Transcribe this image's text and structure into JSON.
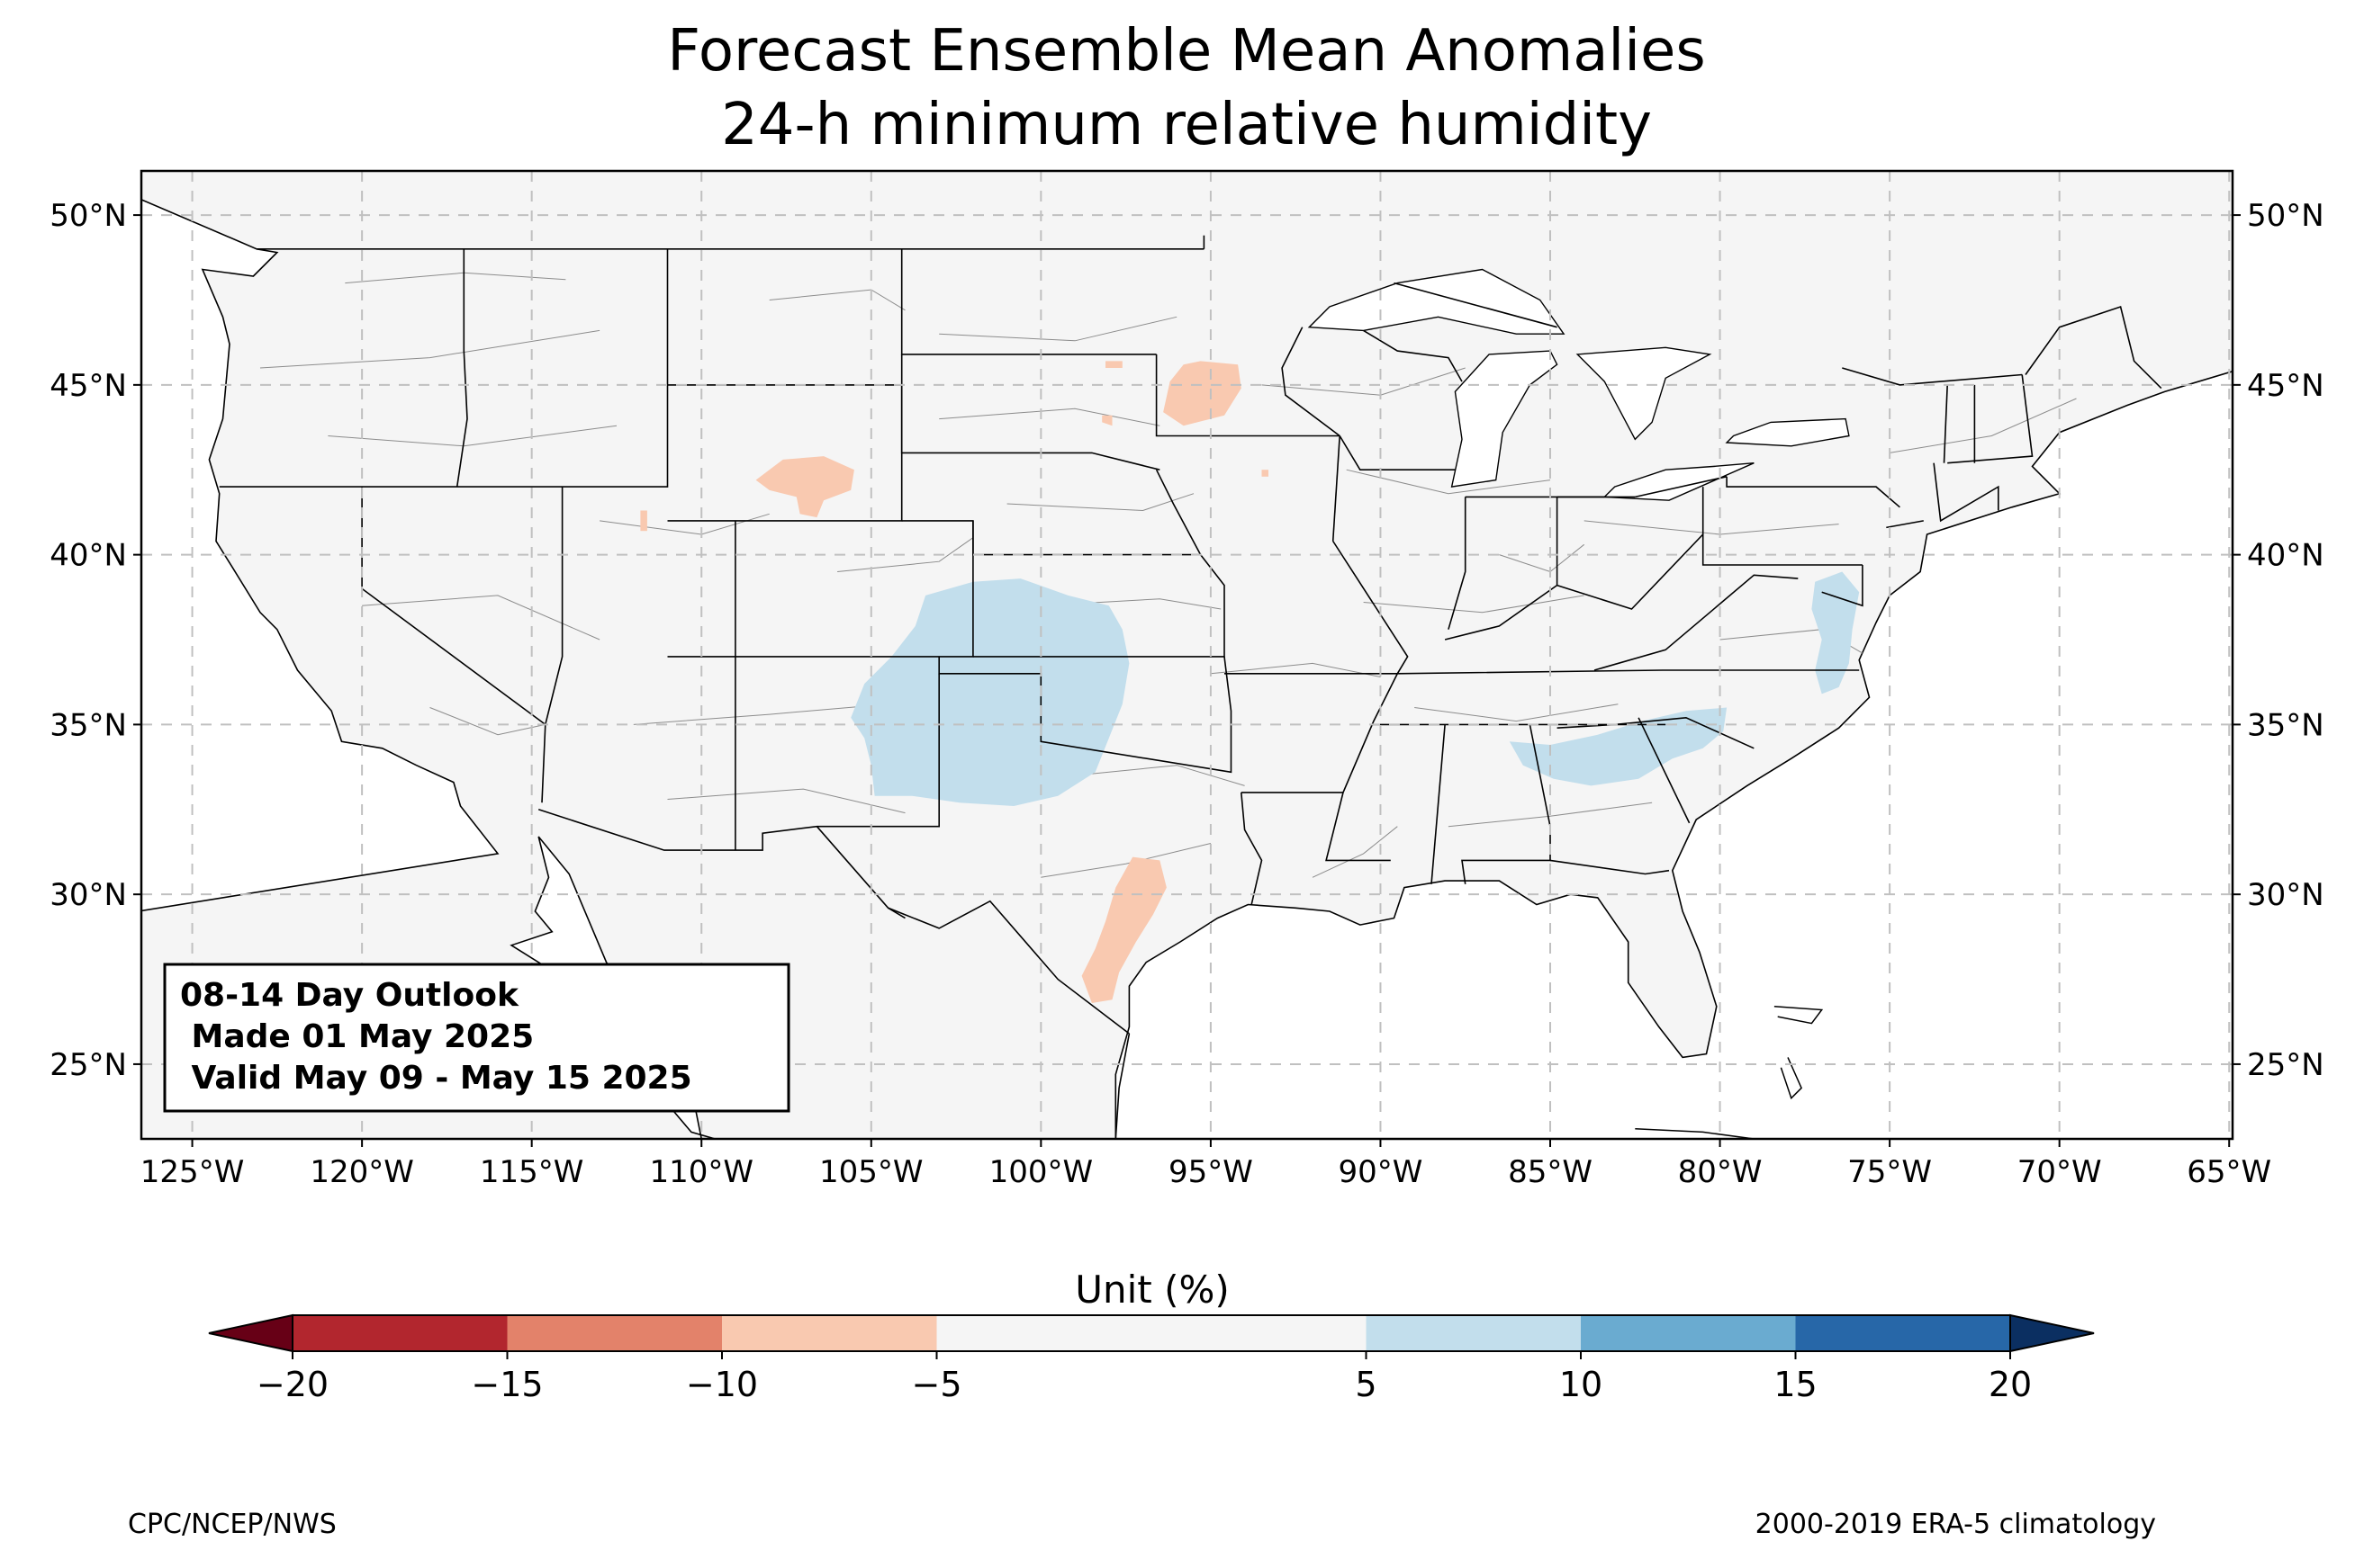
{
  "title": {
    "line1": "Forecast Ensemble Mean Anomalies",
    "line2": "24-h minimum relative humidity"
  },
  "map": {
    "extent": {
      "lon_min": -126.5,
      "lon_max": -64.9,
      "lat_min": 22.8,
      "lat_max": 51.3
    },
    "lon_ticks": [
      {
        "value": -125,
        "label": "125°W"
      },
      {
        "value": -120,
        "label": "120°W"
      },
      {
        "value": -115,
        "label": "115°W"
      },
      {
        "value": -110,
        "label": "110°W"
      },
      {
        "value": -105,
        "label": "105°W"
      },
      {
        "value": -100,
        "label": "100°W"
      },
      {
        "value": -95,
        "label": "95°W"
      },
      {
        "value": -90,
        "label": "90°W"
      },
      {
        "value": -85,
        "label": "85°W"
      },
      {
        "value": -80,
        "label": "80°W"
      },
      {
        "value": -75,
        "label": "75°W"
      },
      {
        "value": -70,
        "label": "70°W"
      },
      {
        "value": -65,
        "label": "65°W"
      }
    ],
    "lat_ticks": [
      {
        "value": 25,
        "label": "25°N"
      },
      {
        "value": 30,
        "label": "30°N"
      },
      {
        "value": 35,
        "label": "35°N"
      },
      {
        "value": 40,
        "label": "40°N"
      },
      {
        "value": 45,
        "label": "45°N"
      },
      {
        "value": 50,
        "label": "50°N"
      }
    ],
    "grid": true,
    "land_color": "#f5f5f5",
    "boundary_color": "#000000",
    "county_color": "#8c8c8c",
    "anomaly_regions": [
      {
        "name": "southern plains moist anomaly",
        "bin": "5 to 10",
        "color": "#c2deec",
        "polygon": [
          [
            -103.4,
            38.8
          ],
          [
            -102,
            39.2
          ],
          [
            -100.6,
            39.3
          ],
          [
            -99.2,
            38.8
          ],
          [
            -98,
            38.5
          ],
          [
            -97.6,
            37.8
          ],
          [
            -97.4,
            36.8
          ],
          [
            -97.6,
            35.6
          ],
          [
            -98,
            34.6
          ],
          [
            -98.4,
            33.6
          ],
          [
            -99.5,
            32.9
          ],
          [
            -100.8,
            32.6
          ],
          [
            -102.4,
            32.7
          ],
          [
            -103.8,
            32.9
          ],
          [
            -104.9,
            32.9
          ],
          [
            -105,
            33.8
          ],
          [
            -105.2,
            34.6
          ],
          [
            -105.6,
            35.2
          ],
          [
            -105.2,
            36.2
          ],
          [
            -104.4,
            37
          ],
          [
            -103.7,
            37.9
          ]
        ]
      },
      {
        "name": "southeast moist anomaly",
        "bin": "5 to 10",
        "color": "#c2deec",
        "polygon": [
          [
            -86.2,
            34.5
          ],
          [
            -85,
            34.4
          ],
          [
            -83.6,
            34.7
          ],
          [
            -82.3,
            35.1
          ],
          [
            -81,
            35.4
          ],
          [
            -79.8,
            35.5
          ],
          [
            -79.9,
            34.8
          ],
          [
            -80.5,
            34.3
          ],
          [
            -81.4,
            34
          ],
          [
            -82.4,
            33.4
          ],
          [
            -83.8,
            33.2
          ],
          [
            -84.9,
            33.4
          ],
          [
            -85.8,
            33.8
          ]
        ]
      },
      {
        "name": "mid-atlantic moist anomaly",
        "bin": "5 to 10",
        "color": "#c2deec",
        "polygon": [
          [
            -77.2,
            39.2
          ],
          [
            -76.4,
            39.5
          ],
          [
            -75.9,
            38.9
          ],
          [
            -76.1,
            37.8
          ],
          [
            -76.2,
            36.8
          ],
          [
            -76.5,
            36.1
          ],
          [
            -77,
            35.9
          ],
          [
            -77.2,
            36.6
          ],
          [
            -77,
            37.5
          ],
          [
            -77.3,
            38.4
          ]
        ]
      },
      {
        "name": "south texas dry anomaly",
        "bin": "-10 to -5",
        "color": "#f9c9b0",
        "polygon": [
          [
            -97.3,
            31.1
          ],
          [
            -96.5,
            31
          ],
          [
            -96.3,
            30.2
          ],
          [
            -96.7,
            29.4
          ],
          [
            -97.2,
            28.6
          ],
          [
            -97.7,
            27.7
          ],
          [
            -97.9,
            26.9
          ],
          [
            -98.5,
            26.8
          ],
          [
            -98.8,
            27.6
          ],
          [
            -98.4,
            28.4
          ],
          [
            -98.1,
            29.2
          ],
          [
            -97.8,
            30.2
          ]
        ]
      },
      {
        "name": "wyoming dry anomaly",
        "bin": "-10 to -5",
        "color": "#f9c9b0",
        "polygon": [
          [
            -108.4,
            42.2
          ],
          [
            -107.6,
            42.8
          ],
          [
            -106.4,
            42.9
          ],
          [
            -105.5,
            42.5
          ],
          [
            -105.6,
            41.9
          ],
          [
            -106.4,
            41.6
          ],
          [
            -106.6,
            41.1
          ],
          [
            -107.1,
            41.2
          ],
          [
            -107.2,
            41.7
          ],
          [
            -108,
            41.9
          ]
        ]
      },
      {
        "name": "minnesota dry anomaly",
        "bin": "-10 to -5",
        "color": "#f9c9b0",
        "polygon": [
          [
            -95.3,
            45.7
          ],
          [
            -94.2,
            45.6
          ],
          [
            -94.1,
            44.9
          ],
          [
            -94.6,
            44.1
          ],
          [
            -95.8,
            43.8
          ],
          [
            -96.4,
            44.2
          ],
          [
            -96.2,
            45.1
          ],
          [
            -95.8,
            45.6
          ]
        ]
      },
      {
        "name": "south dakota dry speck",
        "bin": "-10 to -5",
        "color": "#f9c9b0",
        "polygon": [
          [
            -98.1,
            45.7
          ],
          [
            -97.6,
            45.7
          ],
          [
            -97.6,
            45.5
          ],
          [
            -98.1,
            45.5
          ]
        ]
      },
      {
        "name": "south dakota dry speck",
        "bin": "-10 to -5",
        "color": "#f9c9b0",
        "polygon": [
          [
            -98.2,
            44.1
          ],
          [
            -97.9,
            44.1
          ],
          [
            -97.9,
            43.8
          ],
          [
            -98.2,
            43.9
          ]
        ]
      },
      {
        "name": "iowa dry speck",
        "bin": "-10 to -5",
        "color": "#f9c9b0",
        "polygon": [
          [
            -93.5,
            42.5
          ],
          [
            -93.3,
            42.5
          ],
          [
            -93.3,
            42.3
          ],
          [
            -93.5,
            42.3
          ]
        ]
      },
      {
        "name": "utah dry speck",
        "bin": "-10 to -5",
        "color": "#f9c9b0",
        "polygon": [
          [
            -111.8,
            41.3
          ],
          [
            -111.6,
            41.3
          ],
          [
            -111.6,
            40.7
          ],
          [
            -111.8,
            40.7
          ]
        ]
      }
    ]
  },
  "legend_box": {
    "line1": "08-14 Day Outlook",
    "line2": " Made 01 May 2025",
    "line3": " Valid May 09 - May 15 2025"
  },
  "colorbar": {
    "label": "Unit (%)",
    "bins": [
      {
        "from": -20,
        "to": -15,
        "color": "#b2262e"
      },
      {
        "from": -15,
        "to": -10,
        "color": "#e3826a"
      },
      {
        "from": -10,
        "to": -5,
        "color": "#f9c9b0"
      },
      {
        "from": -5,
        "to": 5,
        "color": "#f5f5f5"
      },
      {
        "from": 5,
        "to": 10,
        "color": "#c2deec"
      },
      {
        "from": 10,
        "to": 15,
        "color": "#6aabd0"
      },
      {
        "from": 15,
        "to": 20,
        "color": "#2767a8"
      }
    ],
    "under_color": "#670016",
    "over_color": "#0b2f61",
    "ticks": [
      "−20",
      "−15",
      "−10",
      "−5",
      "5",
      "10",
      "15",
      "20"
    ]
  },
  "footer": {
    "left": "CPC/NCEP/NWS",
    "right": "2000-2019 ERA-5 climatology"
  }
}
